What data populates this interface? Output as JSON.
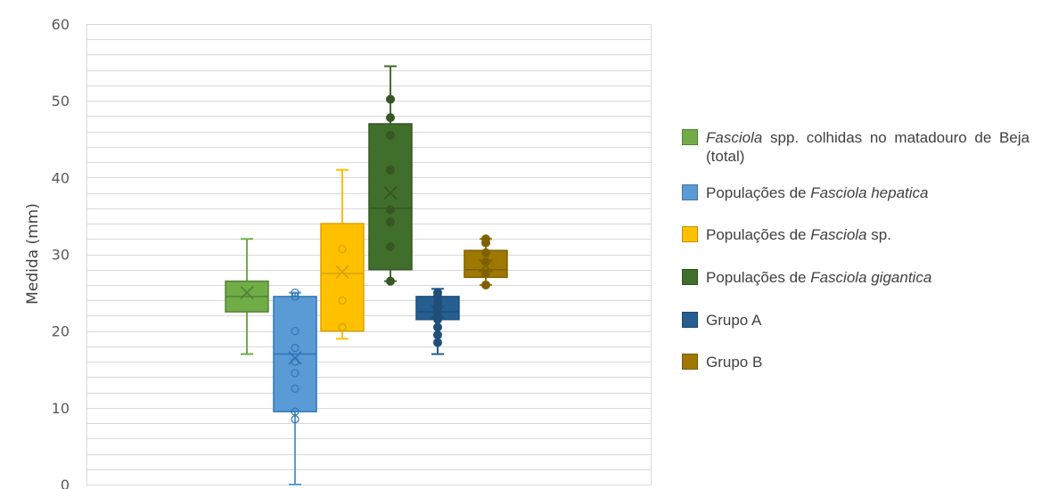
{
  "chart_data": {
    "type": "box",
    "title": "",
    "xlabel": "",
    "ylabel": "Medida (mm)",
    "ylim": [
      0,
      60
    ],
    "yticks": [
      0,
      10,
      20,
      30,
      40,
      50,
      60
    ],
    "minor_grid_step": 2,
    "grid": true,
    "legend_position": "right",
    "series": [
      {
        "legend": {
          "italic": "Fasciola",
          "text": " spp. colhidas no matadouro de Beja (total)"
        },
        "color": "#70AD47",
        "stroke": "#548235",
        "min": 17,
        "q1": 22.5,
        "median": 24.5,
        "q3": 26.5,
        "max": 32,
        "mean": 25,
        "points": [],
        "points_filled": false
      },
      {
        "legend": {
          "text_before": "Populações de ",
          "italic": "Fasciola hepatica"
        },
        "color": "#5B9BD5",
        "stroke": "#2E75B6",
        "min": 0,
        "q1": 9.5,
        "median": 17,
        "q3": 24.5,
        "max": 25,
        "mean": 16.5,
        "points": [
          8.5,
          9.5,
          12.5,
          14.5,
          16,
          17.8,
          20,
          24.5,
          25
        ],
        "points_filled": false
      },
      {
        "legend": {
          "text_before": "Populações de ",
          "italic": "Fasciola",
          "text": " sp."
        },
        "color": "#FFC000",
        "stroke": "#D9A300",
        "min": 19,
        "q1": 20,
        "median": 27.5,
        "q3": 34,
        "max": 41,
        "mean": 27.7,
        "points": [
          20.5,
          24,
          30.7
        ],
        "points_filled": false
      },
      {
        "legend": {
          "text_before": "Populações de ",
          "italic": "Fasciola gigantica"
        },
        "color": "#3F6F2B",
        "stroke": "#375623",
        "min": 26.5,
        "q1": 28,
        "median": 36,
        "q3": 47,
        "max": 54.5,
        "mean": 38,
        "points": [
          26.5,
          31,
          34.2,
          35.8,
          41,
          45.5,
          47.8,
          50.2
        ],
        "points_filled": true
      },
      {
        "legend": {
          "text": "Grupo A"
        },
        "color": "#255E91",
        "stroke": "#1F4E79",
        "min": 17,
        "q1": 21.5,
        "median": 22.5,
        "q3": 24.5,
        "max": 25.5,
        "mean": 22.5,
        "points": [
          18.5,
          19.5,
          20.5,
          21.5,
          22.5,
          23.2,
          23.8,
          24.5,
          25
        ],
        "points_filled": true
      },
      {
        "legend": {
          "text": "Grupo B"
        },
        "color": "#9E7800",
        "stroke": "#7F6000",
        "min": 26,
        "q1": 27,
        "median": 28,
        "q3": 30.5,
        "max": 32,
        "mean": 28.5,
        "points": [
          26,
          27.5,
          29,
          30.2,
          31.5,
          32
        ],
        "points_filled": true
      }
    ]
  }
}
